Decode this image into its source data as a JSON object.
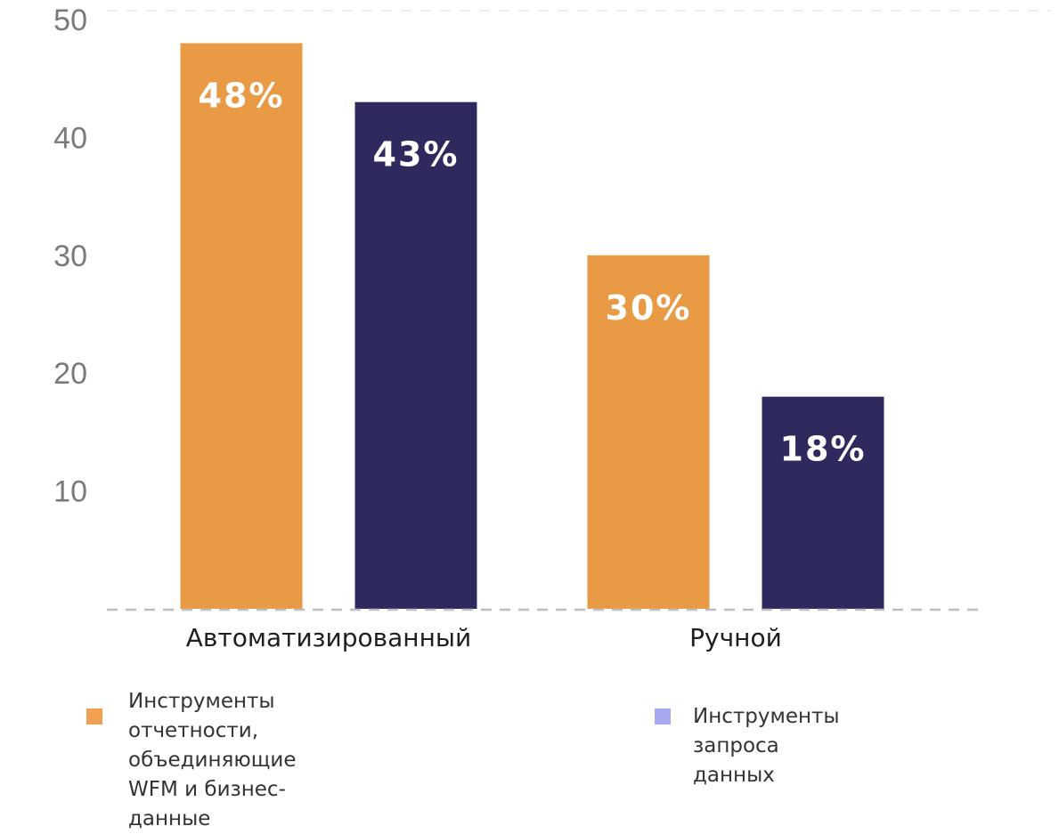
{
  "chart_data": {
    "type": "bar",
    "categories": [
      "Автоматизированный",
      "Ручной"
    ],
    "series": [
      {
        "name": "Инструменты отчетности,\nобъединяющие WFM и бизнес-данные",
        "values": [
          48,
          30
        ],
        "labels": [
          "48%",
          "30%"
        ],
        "color": "#E89A45"
      },
      {
        "name": "Инструменты запроса данных",
        "values": [
          43,
          18
        ],
        "labels": [
          "43%",
          "18%"
        ],
        "color": "#2F2A5E"
      }
    ],
    "yticks": [
      10,
      20,
      30,
      40,
      50
    ],
    "ylim": [
      0,
      50
    ],
    "grid": false,
    "legend_position": "bottom"
  },
  "legend_swatch_colors": [
    "#F0A050",
    "#A6A8F0"
  ]
}
